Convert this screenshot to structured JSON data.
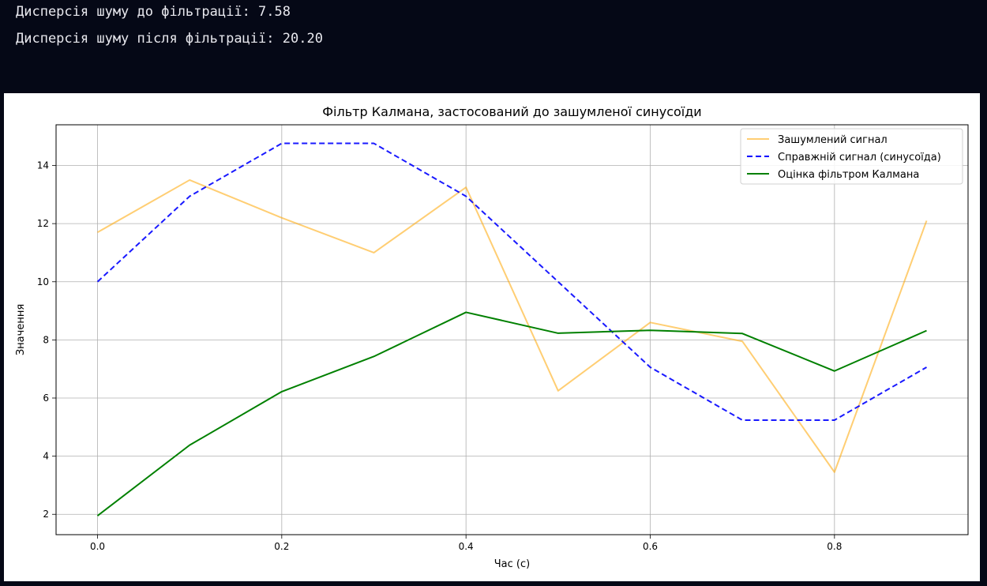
{
  "console": {
    "line1": "Дисперсія шуму до фільтрації: 7.58",
    "line2": "Дисперсія шуму після фільтрації: 20.20"
  },
  "chart_data": {
    "type": "line",
    "title": "Фільтр Калмана, застосований до зашумленої синусоїди",
    "xlabel": "Час (с)",
    "ylabel": "Значення",
    "xlim": [
      -0.045,
      0.945
    ],
    "ylim": [
      1.3,
      15.4
    ],
    "xticks": [
      0.0,
      0.2,
      0.4,
      0.6,
      0.8
    ],
    "xtick_labels": [
      "0.0",
      "0.2",
      "0.4",
      "0.6",
      "0.8"
    ],
    "yticks": [
      2,
      4,
      6,
      8,
      10,
      12,
      14
    ],
    "ytick_labels": [
      "2",
      "4",
      "6",
      "8",
      "10",
      "12",
      "14"
    ],
    "grid": true,
    "legend_position": "top-right",
    "x": [
      0.0,
      0.1,
      0.2,
      0.3,
      0.4,
      0.5,
      0.6,
      0.7,
      0.8,
      0.9
    ],
    "series": [
      {
        "name": "Зашумлений сигнал",
        "color": "#ffa500",
        "style": "solid",
        "values": [
          11.7,
          13.5,
          12.2,
          11.0,
          13.25,
          6.25,
          8.6,
          7.95,
          3.45,
          12.1
        ]
      },
      {
        "name": "Справжній сигнал (синусоїда)",
        "color": "#0000ff",
        "style": "dashed",
        "values": [
          10.0,
          12.94,
          14.76,
          14.76,
          12.94,
          10.0,
          7.06,
          5.24,
          5.24,
          7.06
        ]
      },
      {
        "name": "Оцінка фільтром Калмана",
        "color": "#008000",
        "style": "solid",
        "values": [
          1.95,
          4.38,
          6.22,
          7.43,
          8.95,
          8.23,
          8.33,
          8.22,
          6.93,
          8.32
        ]
      }
    ]
  }
}
